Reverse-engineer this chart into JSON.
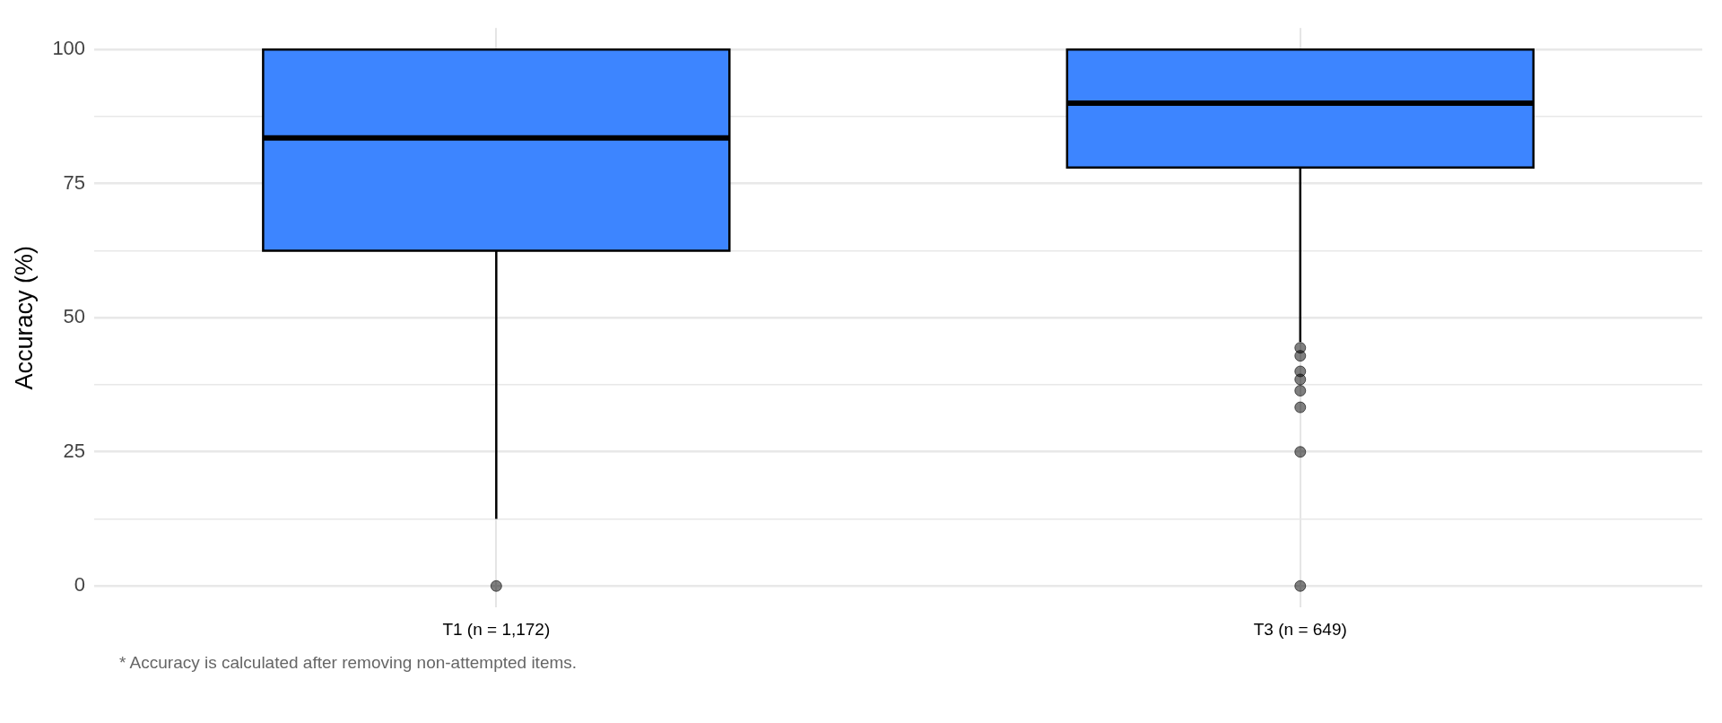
{
  "chart_data": {
    "type": "box",
    "ylabel": "Accuracy (%)",
    "categories": [
      "T1 (n = 1,172)",
      "T3 (n = 649)"
    ],
    "color": "#3d85ff",
    "ylim": [
      -4,
      104
    ],
    "yticks": [
      0,
      {
        "value": 12.5,
        "label": null
      },
      25,
      {
        "value": 37.5,
        "label": null
      },
      50,
      {
        "value": 62.5,
        "label": null
      },
      75,
      {
        "value": 87.5,
        "label": null
      },
      100
    ],
    "grid": true,
    "boxes": [
      {
        "low": 12.5,
        "q1": 62.5,
        "median": 83.5,
        "q3": 100,
        "high": 100,
        "outliers": [
          0
        ]
      },
      {
        "low": 45.5,
        "q1": 78,
        "median": 90,
        "q3": 100,
        "high": 100,
        "outliers": [
          44.4,
          42.9,
          40,
          38.5,
          36.4,
          33.3,
          25,
          0
        ]
      }
    ],
    "annotations": [
      "* Accuracy is calculated after removing non-attempted items."
    ]
  }
}
